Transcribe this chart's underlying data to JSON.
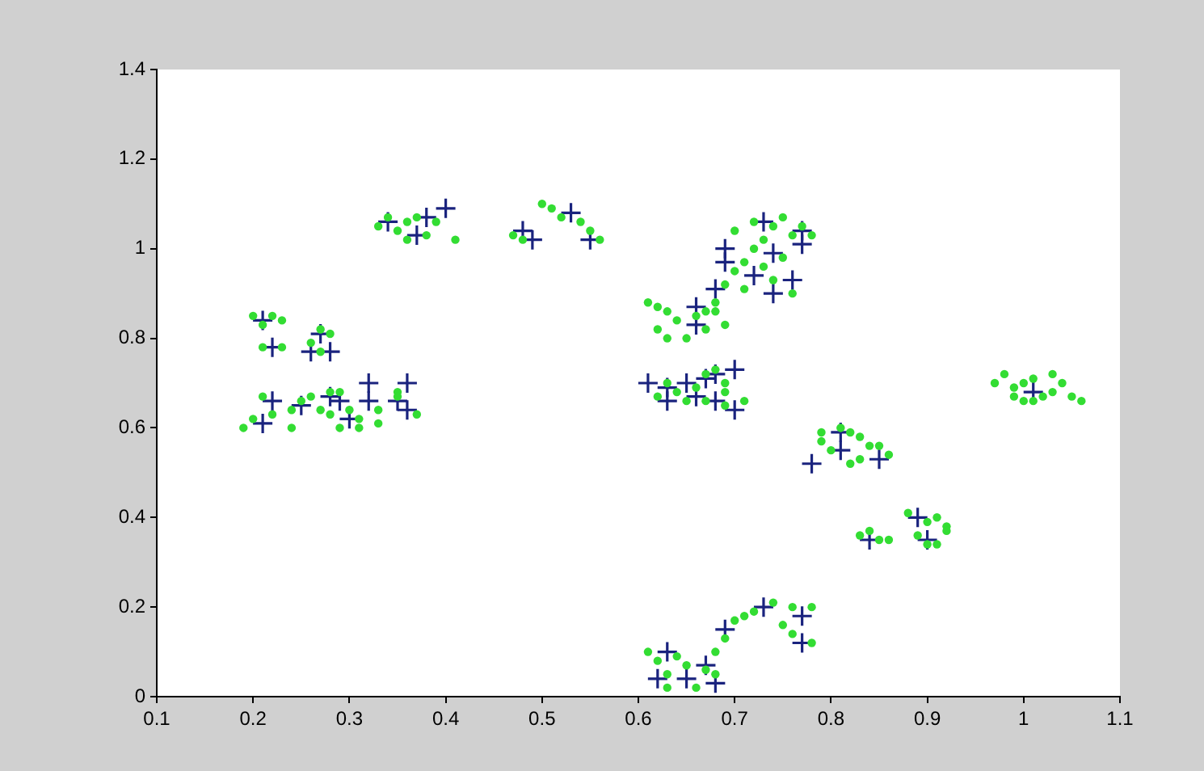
{
  "chart_data": {
    "type": "scatter",
    "xlim": [
      0.1,
      1.1
    ],
    "ylim": [
      0,
      1.4
    ],
    "xticks": [
      0.1,
      0.2,
      0.3,
      0.4,
      0.5,
      0.6,
      0.7,
      0.8,
      0.9,
      1,
      1.1
    ],
    "yticks": [
      0,
      0.2,
      0.4,
      0.6,
      0.8,
      1,
      1.2,
      1.4
    ],
    "series": [
      {
        "color": "#33dd33",
        "marker": "circle",
        "x": [
          0.2,
          0.21,
          0.22,
          0.23,
          0.21,
          0.23,
          0.26,
          0.27,
          0.28,
          0.27,
          0.19,
          0.2,
          0.21,
          0.22,
          0.24,
          0.25,
          0.26,
          0.27,
          0.28,
          0.28,
          0.29,
          0.3,
          0.31,
          0.31,
          0.33,
          0.33,
          0.35,
          0.35,
          0.37,
          0.24,
          0.29,
          0.33,
          0.34,
          0.35,
          0.36,
          0.36,
          0.37,
          0.38,
          0.39,
          0.41,
          0.47,
          0.48,
          0.5,
          0.51,
          0.52,
          0.54,
          0.55,
          0.56,
          0.61,
          0.62,
          0.63,
          0.62,
          0.63,
          0.64,
          0.65,
          0.66,
          0.67,
          0.67,
          0.68,
          0.68,
          0.69,
          0.7,
          0.71,
          0.72,
          0.73,
          0.74,
          0.75,
          0.76,
          0.77,
          0.78,
          0.71,
          0.73,
          0.75,
          0.76,
          0.74,
          0.7,
          0.72,
          0.69,
          0.62,
          0.63,
          0.64,
          0.65,
          0.66,
          0.67,
          0.68,
          0.69,
          0.69,
          0.67,
          0.71,
          0.69,
          0.79,
          0.79,
          0.8,
          0.81,
          0.82,
          0.83,
          0.84,
          0.85,
          0.86,
          0.83,
          0.82,
          0.83,
          0.84,
          0.85,
          0.86,
          0.88,
          0.9,
          0.91,
          0.92,
          0.92,
          0.89,
          0.9,
          0.91,
          0.97,
          0.98,
          0.99,
          1.0,
          1.01,
          1.02,
          1.03,
          1.04,
          1.05,
          1.06,
          0.99,
          1.01,
          1.03,
          1.0,
          0.61,
          0.62,
          0.63,
          0.64,
          0.63,
          0.65,
          0.66,
          0.67,
          0.68,
          0.68,
          0.69,
          0.7,
          0.71,
          0.72,
          0.74,
          0.75,
          0.76,
          0.76,
          0.78,
          0.78
        ],
        "values": [
          0.85,
          0.83,
          0.85,
          0.84,
          0.78,
          0.78,
          0.79,
          0.82,
          0.81,
          0.77,
          0.6,
          0.62,
          0.67,
          0.63,
          0.64,
          0.66,
          0.67,
          0.64,
          0.68,
          0.63,
          0.68,
          0.64,
          0.6,
          0.62,
          0.64,
          0.61,
          0.68,
          0.67,
          0.63,
          0.6,
          0.6,
          1.05,
          1.07,
          1.04,
          1.02,
          1.06,
          1.07,
          1.03,
          1.06,
          1.02,
          1.03,
          1.02,
          1.1,
          1.09,
          1.07,
          1.06,
          1.04,
          1.02,
          0.88,
          0.87,
          0.86,
          0.82,
          0.8,
          0.84,
          0.8,
          0.85,
          0.86,
          0.82,
          0.88,
          0.86,
          0.83,
          0.95,
          0.97,
          1.0,
          1.02,
          1.05,
          1.07,
          1.03,
          1.05,
          1.03,
          0.91,
          0.96,
          0.98,
          0.9,
          0.93,
          1.04,
          1.06,
          0.92,
          0.67,
          0.7,
          0.68,
          0.66,
          0.69,
          0.72,
          0.73,
          0.7,
          0.68,
          0.66,
          0.66,
          0.65,
          0.59,
          0.57,
          0.55,
          0.6,
          0.59,
          0.58,
          0.56,
          0.56,
          0.54,
          0.53,
          0.52,
          0.36,
          0.37,
          0.35,
          0.35,
          0.41,
          0.39,
          0.4,
          0.38,
          0.37,
          0.36,
          0.34,
          0.34,
          0.7,
          0.72,
          0.69,
          0.7,
          0.71,
          0.67,
          0.72,
          0.7,
          0.67,
          0.66,
          0.67,
          0.66,
          0.68,
          0.66,
          0.1,
          0.08,
          0.05,
          0.09,
          0.02,
          0.07,
          0.02,
          0.06,
          0.1,
          0.05,
          0.13,
          0.17,
          0.18,
          0.19,
          0.21,
          0.16,
          0.2,
          0.14,
          0.12,
          0.2
        ]
      },
      {
        "color": "#1a237e",
        "marker": "cross",
        "x": [
          0.21,
          0.22,
          0.27,
          0.26,
          0.28,
          0.22,
          0.21,
          0.25,
          0.28,
          0.29,
          0.3,
          0.32,
          0.32,
          0.35,
          0.36,
          0.36,
          0.34,
          0.37,
          0.38,
          0.4,
          0.48,
          0.49,
          0.53,
          0.55,
          0.66,
          0.66,
          0.68,
          0.69,
          0.69,
          0.72,
          0.73,
          0.74,
          0.74,
          0.76,
          0.77,
          0.77,
          0.61,
          0.63,
          0.63,
          0.65,
          0.66,
          0.67,
          0.68,
          0.68,
          0.7,
          0.7,
          0.78,
          0.81,
          0.81,
          0.85,
          0.84,
          0.89,
          0.9,
          1.01,
          0.62,
          0.63,
          0.65,
          0.67,
          0.68,
          0.69,
          0.73,
          0.77,
          0.77
        ],
        "values": [
          0.84,
          0.78,
          0.81,
          0.77,
          0.77,
          0.66,
          0.61,
          0.65,
          0.67,
          0.66,
          0.62,
          0.7,
          0.66,
          0.66,
          0.7,
          0.64,
          1.06,
          1.03,
          1.07,
          1.09,
          1.04,
          1.02,
          1.08,
          1.02,
          0.87,
          0.83,
          0.91,
          0.97,
          1.0,
          0.94,
          1.06,
          0.99,
          0.9,
          0.93,
          1.04,
          1.01,
          0.7,
          0.69,
          0.66,
          0.7,
          0.67,
          0.71,
          0.72,
          0.66,
          0.73,
          0.64,
          0.52,
          0.59,
          0.55,
          0.53,
          0.35,
          0.4,
          0.35,
          0.68,
          0.04,
          0.1,
          0.04,
          0.07,
          0.03,
          0.15,
          0.2,
          0.18,
          0.12
        ]
      }
    ]
  }
}
